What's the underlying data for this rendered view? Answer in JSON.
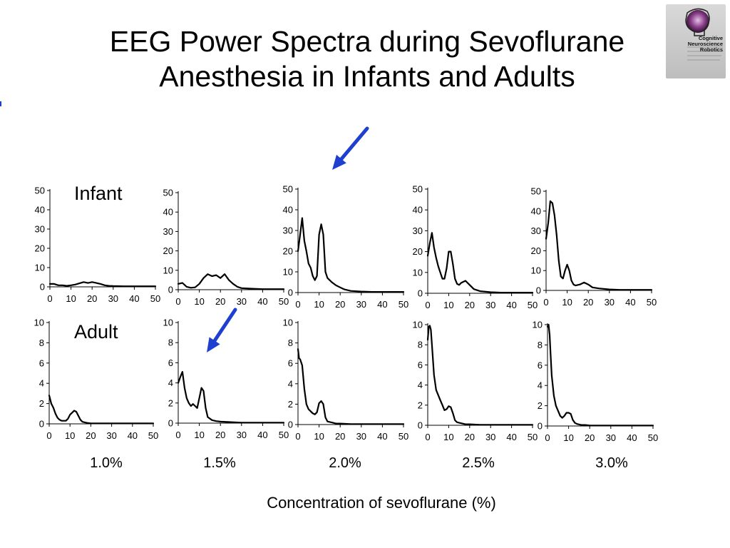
{
  "title": {
    "line1": "EEG Power Spectra during Sevoflurane",
    "line2": "Anesthesia in Infants and Adults"
  },
  "logo": {
    "line1": "Cognitive",
    "line2": "Neuroscience",
    "line3": "Robotics"
  },
  "row_labels": {
    "infant": "Infant",
    "adult": "Adult"
  },
  "concentrations": [
    "1.0%",
    "1.5%",
    "2.0%",
    "2.5%",
    "3.0%"
  ],
  "x_axis_label": "Concentration of sevoflurane (%)",
  "arrow_color": "#1f3fd1",
  "chart_data": [
    {
      "type": "line",
      "row": "Infant",
      "concentration": "1.0%",
      "xlim": [
        0,
        50
      ],
      "ylim": [
        0,
        50
      ],
      "xticks": [
        0,
        10,
        20,
        30,
        40,
        50
      ],
      "yticks": [
        0,
        10,
        20,
        30,
        40,
        50
      ],
      "series": [
        {
          "x": [
            0,
            2,
            4,
            6,
            8,
            10,
            12,
            14,
            16,
            18,
            20,
            22,
            24,
            26,
            28,
            30,
            35,
            40,
            45,
            50
          ],
          "y": [
            1.5,
            1.5,
            0.8,
            0.8,
            0.5,
            0.8,
            1.2,
            1.8,
            2.5,
            2,
            2.5,
            2,
            1.5,
            0.8,
            0.5,
            0.4,
            0.3,
            0.3,
            0.3,
            0.3
          ]
        }
      ]
    },
    {
      "type": "line",
      "row": "Infant",
      "concentration": "1.5%",
      "xlim": [
        0,
        50
      ],
      "ylim": [
        0,
        50
      ],
      "xticks": [
        0,
        10,
        20,
        30,
        40,
        50
      ],
      "yticks": [
        0,
        10,
        20,
        30,
        40,
        50
      ],
      "series": [
        {
          "x": [
            0,
            2,
            4,
            6,
            8,
            10,
            12,
            14,
            16,
            18,
            20,
            22,
            24,
            26,
            28,
            30,
            35,
            40,
            45,
            50
          ],
          "y": [
            3,
            3.5,
            1.5,
            1,
            1.2,
            3,
            6,
            8,
            7,
            7.5,
            6,
            8,
            5,
            3,
            1.5,
            0.8,
            0.5,
            0.3,
            0.3,
            0.3
          ]
        }
      ]
    },
    {
      "type": "line",
      "row": "Infant",
      "concentration": "2.0%",
      "xlim": [
        0,
        50
      ],
      "ylim": [
        0,
        50
      ],
      "xticks": [
        0,
        10,
        20,
        30,
        40,
        50
      ],
      "yticks": [
        0,
        10,
        20,
        30,
        40,
        50
      ],
      "series": [
        {
          "x": [
            0,
            1,
            2,
            3,
            4,
            5,
            6,
            7,
            8,
            9,
            10,
            11,
            12,
            13,
            14,
            16,
            18,
            20,
            22,
            25,
            30,
            35,
            40,
            45,
            50
          ],
          "y": [
            20,
            28,
            36,
            25,
            20,
            14,
            12,
            8,
            6,
            8,
            28,
            33,
            28,
            10,
            7,
            5,
            3.5,
            2.5,
            1.5,
            0.8,
            0.5,
            0.3,
            0.3,
            0.3,
            0.3
          ]
        }
      ]
    },
    {
      "type": "line",
      "row": "Infant",
      "concentration": "2.5%",
      "xlim": [
        0,
        50
      ],
      "ylim": [
        0,
        50
      ],
      "xticks": [
        0,
        10,
        20,
        30,
        40,
        50
      ],
      "yticks": [
        0,
        10,
        20,
        30,
        40,
        50
      ],
      "series": [
        {
          "x": [
            0,
            1,
            2,
            3,
            4,
            5,
            6,
            7,
            8,
            9,
            10,
            11,
            12,
            13,
            14,
            15,
            16,
            18,
            20,
            22,
            25,
            30,
            35,
            40,
            45,
            50
          ],
          "y": [
            18,
            24,
            29,
            22,
            17,
            13,
            10,
            7,
            7,
            12,
            20,
            20,
            14,
            7,
            4.5,
            4,
            5,
            6,
            4,
            2,
            1,
            0.5,
            0.3,
            0.3,
            0.3,
            0.3
          ]
        }
      ]
    },
    {
      "type": "line",
      "row": "Infant",
      "concentration": "3.0%",
      "xlim": [
        0,
        50
      ],
      "ylim": [
        0,
        50
      ],
      "xticks": [
        0,
        10,
        20,
        30,
        40,
        50
      ],
      "yticks": [
        0,
        10,
        20,
        30,
        40,
        50
      ],
      "series": [
        {
          "x": [
            0,
            1,
            2,
            3,
            4,
            5,
            6,
            7,
            8,
            9,
            10,
            11,
            12,
            13,
            14,
            16,
            18,
            20,
            22,
            25,
            30,
            35,
            40,
            45,
            50
          ],
          "y": [
            26,
            34,
            45,
            44,
            38,
            28,
            15,
            7,
            6,
            10,
            13,
            10,
            5,
            3,
            2.5,
            3,
            4,
            3,
            1.5,
            1,
            0.5,
            0.3,
            0.3,
            0.3,
            0.3
          ]
        }
      ]
    },
    {
      "type": "line",
      "row": "Adult",
      "concentration": "1.0%",
      "xlim": [
        0,
        50
      ],
      "ylim": [
        0,
        10
      ],
      "xticks": [
        0,
        10,
        20,
        30,
        40,
        50
      ],
      "yticks": [
        0,
        2,
        4,
        6,
        8,
        10
      ],
      "series": [
        {
          "x": [
            0,
            0.5,
            1,
            2,
            3,
            4,
            5,
            6,
            7,
            8,
            9,
            10,
            11,
            12,
            13,
            14,
            15,
            16,
            18,
            20,
            25,
            30,
            40,
            50
          ],
          "y": [
            2.8,
            2.4,
            2,
            1.6,
            1,
            0.6,
            0.4,
            0.3,
            0.3,
            0.3,
            0.5,
            0.9,
            1.1,
            1.3,
            1.2,
            0.8,
            0.4,
            0.2,
            0.1,
            0.05,
            0.05,
            0.05,
            0.05,
            0.05
          ]
        }
      ]
    },
    {
      "type": "line",
      "row": "Adult",
      "concentration": "1.5%",
      "xlim": [
        0,
        50
      ],
      "ylim": [
        0,
        10
      ],
      "xticks": [
        0,
        10,
        20,
        30,
        40,
        50
      ],
      "yticks": [
        0,
        2,
        4,
        6,
        8,
        10
      ],
      "series": [
        {
          "x": [
            0,
            1,
            2,
            3,
            4,
            5,
            6,
            7,
            8,
            9,
            10,
            11,
            12,
            13,
            14,
            16,
            18,
            20,
            25,
            30,
            40,
            50
          ],
          "y": [
            4,
            4.6,
            5.1,
            3.5,
            2.5,
            2,
            1.7,
            1.9,
            1.7,
            1.5,
            2.5,
            3.5,
            3.2,
            1.5,
            0.6,
            0.3,
            0.2,
            0.15,
            0.1,
            0.05,
            0.05,
            0.05
          ]
        }
      ]
    },
    {
      "type": "line",
      "row": "Adult",
      "concentration": "2.0%",
      "xlim": [
        0,
        50
      ],
      "ylim": [
        0,
        10
      ],
      "xticks": [
        0,
        10,
        20,
        30,
        40,
        50
      ],
      "yticks": [
        0,
        2,
        4,
        6,
        8,
        10
      ],
      "series": [
        {
          "x": [
            0,
            0.5,
            1,
            2,
            3,
            4,
            5,
            6,
            7,
            8,
            9,
            10,
            11,
            12,
            13,
            14,
            16,
            18,
            20,
            25,
            30,
            40,
            50
          ],
          "y": [
            7.4,
            6.5,
            6.4,
            5.8,
            3.5,
            2,
            1.5,
            1.3,
            1.1,
            1,
            1.2,
            2.1,
            2.3,
            2,
            0.7,
            0.3,
            0.2,
            0.1,
            0.1,
            0.05,
            0.05,
            0.05,
            0.05
          ]
        }
      ]
    },
    {
      "type": "line",
      "row": "Adult",
      "concentration": "2.5%",
      "xlim": [
        0,
        50
      ],
      "ylim": [
        0,
        10
      ],
      "xticks": [
        0,
        10,
        20,
        30,
        40,
        50
      ],
      "yticks": [
        0,
        2,
        4,
        6,
        8,
        10
      ],
      "series": [
        {
          "x": [
            0,
            0.5,
            1,
            1.5,
            2,
            3,
            4,
            5,
            6,
            7,
            8,
            9,
            10,
            11,
            12,
            13,
            14,
            16,
            18,
            20,
            25,
            30,
            40,
            50
          ],
          "y": [
            8.5,
            9.8,
            9.9,
            9.5,
            8,
            5,
            3.5,
            3,
            2.5,
            2,
            1.5,
            1.6,
            1.9,
            1.8,
            1.2,
            0.5,
            0.3,
            0.2,
            0.1,
            0.1,
            0.05,
            0.05,
            0.05,
            0.05
          ]
        }
      ]
    },
    {
      "type": "line",
      "row": "Adult",
      "concentration": "3.0%",
      "xlim": [
        0,
        50
      ],
      "ylim": [
        0,
        10
      ],
      "xticks": [
        0,
        10,
        20,
        30,
        40,
        50
      ],
      "yticks": [
        0,
        2,
        4,
        6,
        8,
        10
      ],
      "series": [
        {
          "x": [
            0,
            0.5,
            1,
            1.5,
            2,
            3,
            4,
            5,
            6,
            7,
            8,
            9,
            10,
            11,
            12,
            13,
            14,
            16,
            18,
            20,
            25,
            30,
            40,
            50
          ],
          "y": [
            9.8,
            10,
            9,
            7,
            5,
            3,
            2,
            1.5,
            1,
            0.8,
            1,
            1.3,
            1.3,
            1.2,
            0.6,
            0.3,
            0.2,
            0.1,
            0.1,
            0.05,
            0.05,
            0.05,
            0.05,
            0.05
          ]
        }
      ]
    }
  ]
}
